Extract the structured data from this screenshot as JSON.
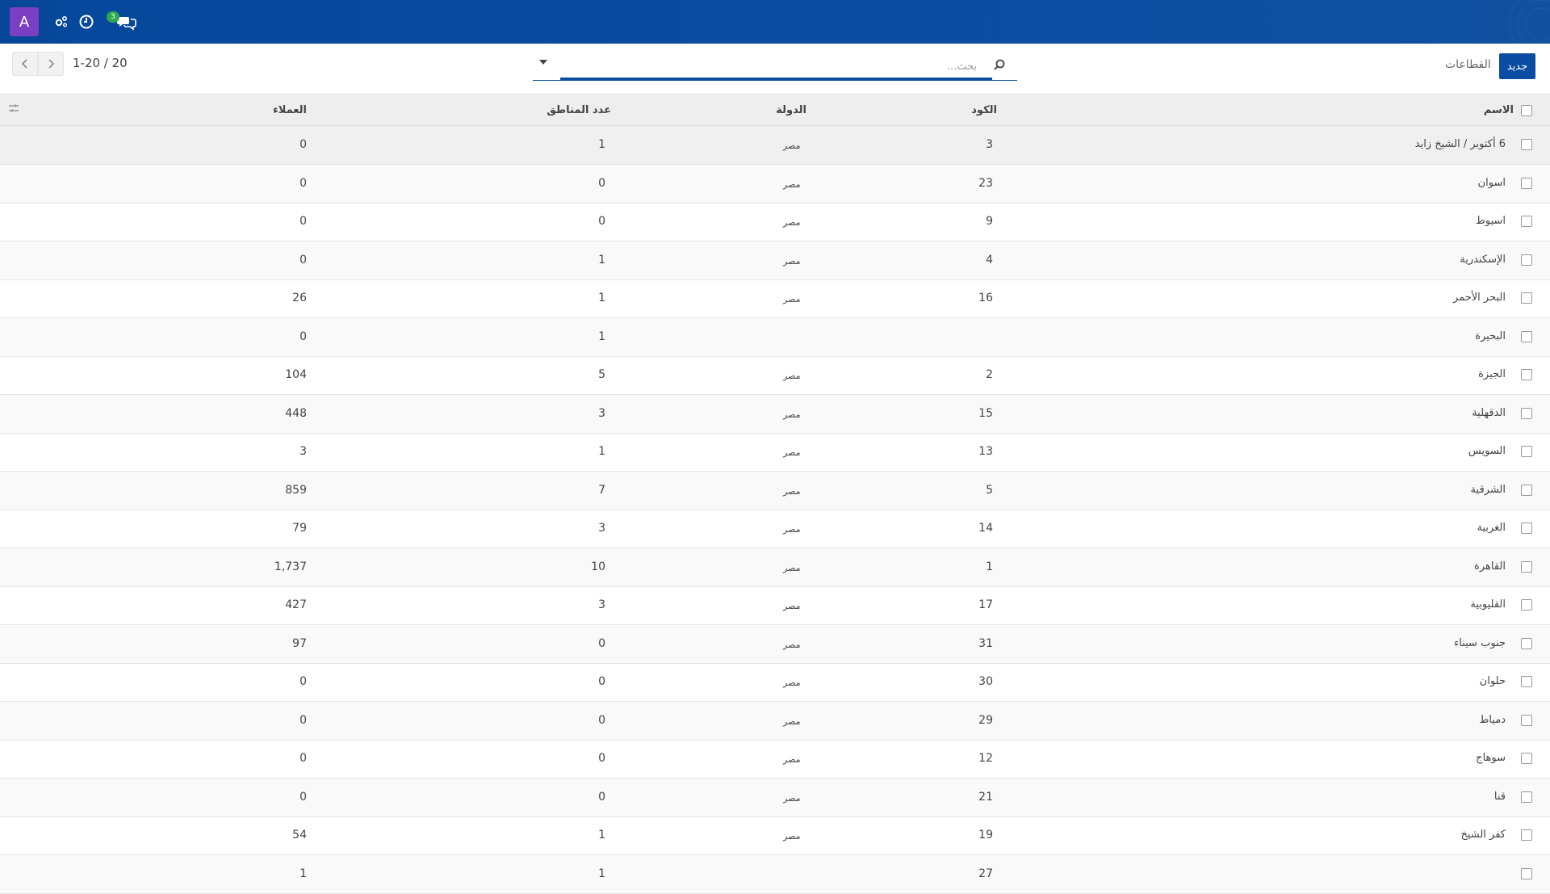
{
  "navbar": {
    "avatar_letter": "A",
    "messages_badge": "3",
    "icons": [
      "settings-icon",
      "activity-clock-icon",
      "chat-icon"
    ]
  },
  "control": {
    "pager_value": "1-20 / 20",
    "search_placeholder": "بحث...",
    "breadcrumb": "القطاعات",
    "new_button_label": "جديد"
  },
  "table": {
    "headers": {
      "name": "الاسم",
      "code": "الكود",
      "country": "الدولة",
      "regions": "عدد المناطق",
      "customers": "العملاء"
    },
    "rows": [
      {
        "name": "6 أكتوبر / الشيخ زايد",
        "code": "3",
        "country": "مصر",
        "regions": "1",
        "customers": "0"
      },
      {
        "name": "اسوان",
        "code": "23",
        "country": "مصر",
        "regions": "0",
        "customers": "0"
      },
      {
        "name": "اسيوط",
        "code": "9",
        "country": "مصر",
        "regions": "0",
        "customers": "0"
      },
      {
        "name": "الإسكندرية",
        "code": "4",
        "country": "مصر",
        "regions": "1",
        "customers": "0"
      },
      {
        "name": "البحر الأحمر",
        "code": "16",
        "country": "مصر",
        "regions": "1",
        "customers": "26"
      },
      {
        "name": "البحيرة",
        "code": "",
        "country": "",
        "regions": "1",
        "customers": "0"
      },
      {
        "name": "الجيزة",
        "code": "2",
        "country": "مصر",
        "regions": "5",
        "customers": "104"
      },
      {
        "name": "الدقهلية",
        "code": "15",
        "country": "مصر",
        "regions": "3",
        "customers": "448"
      },
      {
        "name": "السويس",
        "code": "13",
        "country": "مصر",
        "regions": "1",
        "customers": "3"
      },
      {
        "name": "الشرقية",
        "code": "5",
        "country": "مصر",
        "regions": "7",
        "customers": "859"
      },
      {
        "name": "الغربية",
        "code": "14",
        "country": "مصر",
        "regions": "3",
        "customers": "79"
      },
      {
        "name": "القاهرة",
        "code": "1",
        "country": "مصر",
        "regions": "10",
        "customers": "1,737"
      },
      {
        "name": "القليوبية",
        "code": "17",
        "country": "مصر",
        "regions": "3",
        "customers": "427"
      },
      {
        "name": "جنوب سيناء",
        "code": "31",
        "country": "مصر",
        "regions": "0",
        "customers": "97"
      },
      {
        "name": "حلوان",
        "code": "30",
        "country": "مصر",
        "regions": "0",
        "customers": "0"
      },
      {
        "name": "دمياط",
        "code": "29",
        "country": "مصر",
        "regions": "0",
        "customers": "0"
      },
      {
        "name": "سوهاج",
        "code": "12",
        "country": "مصر",
        "regions": "0",
        "customers": "0"
      },
      {
        "name": "قنا",
        "code": "21",
        "country": "مصر",
        "regions": "0",
        "customers": "0"
      },
      {
        "name": "كفر الشيخ",
        "code": "19",
        "country": "مصر",
        "regions": "1",
        "customers": "54"
      },
      {
        "name": "",
        "code": "27",
        "country": "",
        "regions": "1",
        "customers": "1"
      }
    ]
  },
  "colors": {
    "brand": "#0a4da2",
    "avatar": "#7a3fc2",
    "badge": "#2ea84e"
  }
}
